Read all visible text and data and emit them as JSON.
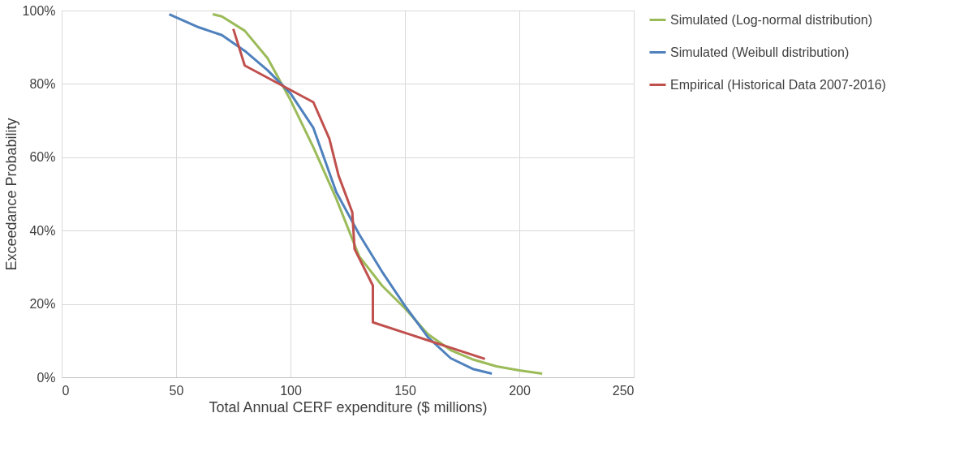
{
  "chart_data": {
    "type": "line",
    "xlabel": "Total Annual CERF expenditure ($ millions)",
    "ylabel": "Exceedance Probability",
    "xlim": [
      0,
      250
    ],
    "xticks": [
      0,
      50,
      100,
      150,
      200,
      250
    ],
    "ylim": [
      0,
      100
    ],
    "yticks": [
      {
        "value": 0,
        "label": "0%"
      },
      {
        "value": 20,
        "label": "20%"
      },
      {
        "value": 40,
        "label": "40%"
      },
      {
        "value": 60,
        "label": "60%"
      },
      {
        "value": 80,
        "label": "80%"
      },
      {
        "value": 100,
        "label": "100%"
      }
    ],
    "grid": true,
    "legend": "right",
    "marker": "none",
    "line_style": "solid",
    "series": [
      {
        "name": "Simulated (Log-normal distribution)",
        "color": "#9bbb59",
        "x": [
          66,
          70,
          80,
          90,
          100,
          110,
          120,
          130,
          140,
          150,
          160,
          170,
          180,
          190,
          200,
          210
        ],
        "values": [
          99,
          98.4,
          94.5,
          87,
          75.6,
          62.7,
          48.7,
          33,
          25,
          18.8,
          11.8,
          7.4,
          4.8,
          3,
          1.9,
          1
        ]
      },
      {
        "name": "Simulated (Weibull distribution)",
        "color": "#4f81bd",
        "x": [
          47,
          60,
          70,
          80,
          90,
          100,
          110,
          120,
          130,
          140,
          150,
          160,
          170,
          180,
          188
        ],
        "values": [
          99,
          95.4,
          93.3,
          89,
          83.7,
          77.4,
          68,
          50.5,
          39,
          28.8,
          19.5,
          11,
          5.2,
          2.2,
          1
        ]
      },
      {
        "name": "Empirical (Historical Data 2007-2016)",
        "color": "#c0504d",
        "x": [
          75,
          80,
          110,
          117,
          121,
          127,
          128,
          136,
          136,
          185
        ],
        "values": [
          95,
          85,
          75,
          65,
          55,
          45,
          35,
          25,
          15,
          5
        ]
      }
    ]
  }
}
